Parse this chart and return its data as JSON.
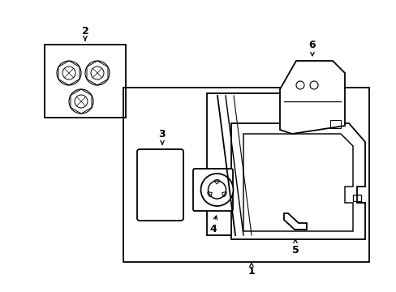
{
  "bg_color": "#ffffff",
  "line_color": "#000000",
  "lw": 1.3,
  "fig_width": 4.89,
  "fig_height": 3.6,
  "labels": [
    "1",
    "2",
    "3",
    "4",
    "5",
    "6"
  ]
}
